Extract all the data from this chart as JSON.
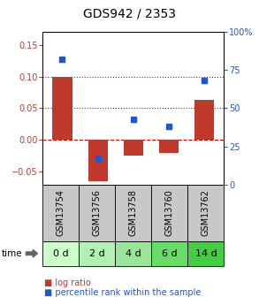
{
  "title": "GDS942 / 2353",
  "samples": [
    "GSM13754",
    "GSM13756",
    "GSM13758",
    "GSM13760",
    "GSM13762"
  ],
  "time_labels": [
    "0 d",
    "2 d",
    "4 d",
    "6 d",
    "14 d"
  ],
  "log_ratio": [
    0.1,
    -0.065,
    -0.025,
    -0.02,
    0.063
  ],
  "percentile_rank": [
    82,
    17,
    43,
    38,
    68
  ],
  "bar_color": "#c0392b",
  "dot_color": "#2255cc",
  "ylim_left": [
    -0.07,
    0.17
  ],
  "ylim_right": [
    0,
    100
  ],
  "yticks_left": [
    -0.05,
    0,
    0.05,
    0.1,
    0.15
  ],
  "yticks_right": [
    0,
    25,
    50,
    75,
    100
  ],
  "hlines": [
    0.05,
    0.1
  ],
  "hline_zero_color": "#cc0000",
  "hline_dotted_color": "#444444",
  "sample_bg_color": "#c8c8c8",
  "time_bg_colors": [
    "#ccffcc",
    "#b3f0b3",
    "#99e699",
    "#66dd66",
    "#44cc44"
  ],
  "legend_log_ratio_color": "#c0392b",
  "legend_pct_color": "#2255cc",
  "bar_width": 0.55,
  "title_fontsize": 10,
  "tick_fontsize": 7,
  "time_row_fontsize": 8,
  "sample_fontsize": 7
}
